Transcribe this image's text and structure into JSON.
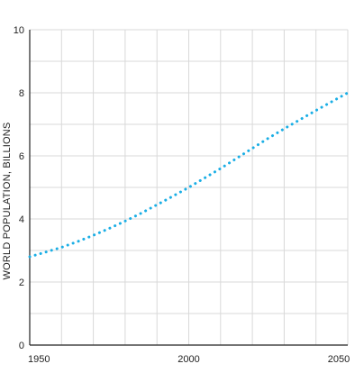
{
  "chart_data": {
    "type": "line",
    "title": "",
    "xlabel": "",
    "ylabel": "WORLD POPULATION, BILLIONS",
    "xlim": [
      1950,
      2050
    ],
    "ylim": [
      0,
      10
    ],
    "x_ticks": [
      1950,
      2000,
      2050
    ],
    "y_ticks": [
      0,
      2,
      4,
      6,
      8,
      10
    ],
    "grid": true,
    "line_style": "dotted",
    "color": "#1aaee5",
    "series": [
      {
        "x": [
          1950,
          1955,
          1960,
          1965,
          1970,
          1975,
          1980,
          1985,
          1990,
          1995,
          2000,
          2005,
          2010,
          2015,
          2020,
          2025,
          2030,
          2035,
          2040,
          2045,
          2050
        ],
        "values": [
          2.8,
          2.95,
          3.1,
          3.28,
          3.48,
          3.7,
          3.93,
          4.18,
          4.45,
          4.72,
          5.0,
          5.3,
          5.6,
          5.92,
          6.24,
          6.56,
          6.86,
          7.15,
          7.44,
          7.72,
          8.0
        ]
      }
    ]
  }
}
